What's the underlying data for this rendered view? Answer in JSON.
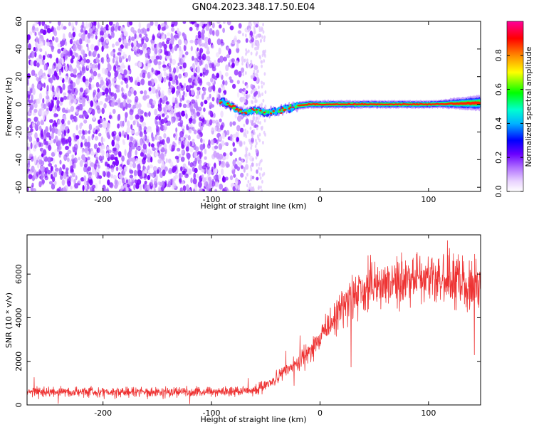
{
  "figure": {
    "title": "GN04.2023.348.17.50.E04"
  },
  "chart_data": [
    {
      "type": "heatmap",
      "title": "GN04.2023.348.17.50.E04",
      "xlabel": "Height of straight line (km)",
      "ylabel": "Frequency (Hz)",
      "xlim": [
        -270,
        148
      ],
      "ylim": [
        -63,
        60
      ],
      "xticks": [
        -200,
        -100,
        0,
        100
      ],
      "yticks": [
        -60,
        -40,
        -20,
        0,
        20,
        40,
        60
      ],
      "colorbar": {
        "label": "Normalized spectral amplitude",
        "range": [
          0,
          1
        ],
        "ticks": [
          0.0,
          0.2,
          0.4,
          0.6,
          0.8
        ],
        "colormap": [
          "#ffffff",
          "#c87eff",
          "#7b00ff",
          "#0000ff",
          "#00c8ff",
          "#00ff33",
          "#ffff00",
          "#ff8800",
          "#ff0000",
          "#ff00aa"
        ]
      },
      "ridge": {
        "description_values": "dominant frequency ridge (Hz) vs height (km)",
        "x": [
          -90,
          -80,
          -70,
          -60,
          -50,
          -40,
          -30,
          -20,
          -10,
          0,
          50,
          100,
          148
        ],
        "y": [
          2,
          -2,
          -6,
          -4,
          -6,
          -5,
          -3,
          -1,
          0,
          0,
          0,
          0,
          1
        ]
      },
      "noise_region": {
        "x_from": -270,
        "x_to": -55,
        "y_from": -63,
        "y_to": 60
      }
    },
    {
      "type": "line",
      "xlabel": "Height of straight line (km)",
      "ylabel": "SNR (10 * v/v)",
      "xlim": [
        -270,
        148
      ],
      "ylim": [
        0,
        7800
      ],
      "xticks": [
        -200,
        -100,
        0,
        100
      ],
      "yticks": [
        0,
        2000,
        4000,
        6000
      ],
      "color": "#ee3333",
      "trend": {
        "x": [
          -270,
          -200,
          -150,
          -100,
          -80,
          -60,
          -50,
          -40,
          -30,
          -20,
          -10,
          0,
          10,
          20,
          30,
          40,
          60,
          80,
          100,
          120,
          148
        ],
        "y": [
          600,
          600,
          600,
          600,
          620,
          700,
          900,
          1200,
          1600,
          2000,
          2500,
          3000,
          3700,
          4500,
          5000,
          5300,
          5500,
          5700,
          5800,
          5700,
          5500
        ]
      }
    }
  ]
}
